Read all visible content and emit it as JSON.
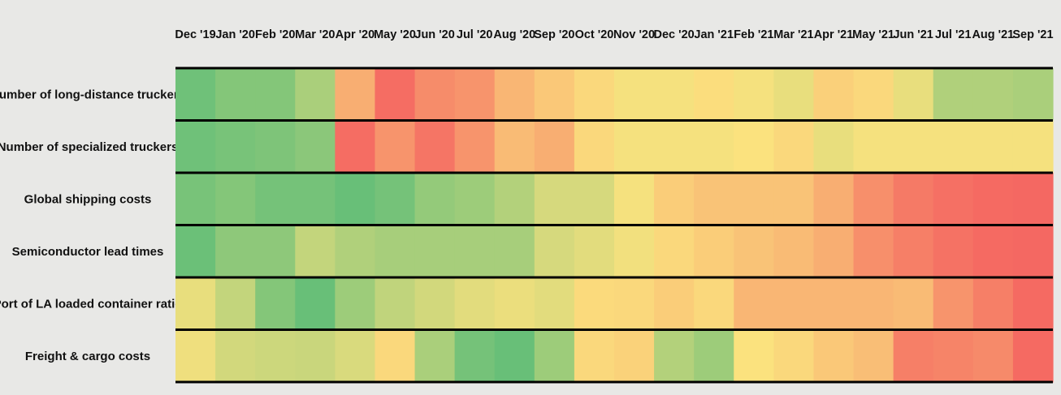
{
  "chart_data": {
    "type": "heatmap",
    "title": "",
    "xlabel": "",
    "ylabel": "",
    "legend": "none",
    "grid": false,
    "color_scale": {
      "low": "#f46060",
      "mid": "#fbe27e",
      "high": "#5fbd78",
      "range": [
        0,
        1
      ]
    },
    "columns": [
      "Dec '19",
      "Jan '20",
      "Feb '20",
      "Mar '20",
      "Apr '20",
      "May '20",
      "Jun '20",
      "Jul '20",
      "Aug '20",
      "Sep '20",
      "Oct '20",
      "Nov '20",
      "Dec '20",
      "Jan '21",
      "Feb '21",
      "Mar '21",
      "Apr '21",
      "May '21",
      "Jun '21",
      "Jul '21",
      "Aug '21",
      "Sep '21"
    ],
    "rows": [
      {
        "name": "Number of long-distance truckers",
        "values": [
          0.95,
          0.88,
          0.88,
          0.76,
          0.3,
          0.05,
          0.17,
          0.2,
          0.33,
          0.4,
          0.46,
          0.52,
          0.52,
          0.48,
          0.52,
          0.56,
          0.43,
          0.46,
          0.56,
          0.74,
          0.74,
          0.76
        ]
      },
      {
        "name": "Number of specialized truckers",
        "values": [
          0.95,
          0.92,
          0.9,
          0.86,
          0.05,
          0.2,
          0.08,
          0.2,
          0.35,
          0.3,
          0.46,
          0.52,
          0.52,
          0.52,
          0.5,
          0.46,
          0.56,
          0.52,
          0.52,
          0.52,
          0.52,
          0.52
        ]
      },
      {
        "name": "Global shipping costs",
        "values": [
          0.92,
          0.88,
          0.93,
          0.93,
          0.97,
          0.93,
          0.83,
          0.8,
          0.73,
          0.62,
          0.62,
          0.52,
          0.42,
          0.38,
          0.38,
          0.38,
          0.3,
          0.18,
          0.1,
          0.06,
          0.04,
          0.03
        ]
      },
      {
        "name": "Semiconductor lead times",
        "values": [
          0.96,
          0.85,
          0.85,
          0.68,
          0.74,
          0.77,
          0.77,
          0.77,
          0.77,
          0.62,
          0.58,
          0.53,
          0.46,
          0.42,
          0.38,
          0.35,
          0.3,
          0.18,
          0.12,
          0.07,
          0.04,
          0.03
        ]
      },
      {
        "name": "Port of LA loaded container ratio",
        "values": [
          0.56,
          0.68,
          0.88,
          0.97,
          0.8,
          0.69,
          0.63,
          0.58,
          0.55,
          0.58,
          0.47,
          0.46,
          0.42,
          0.46,
          0.33,
          0.33,
          0.33,
          0.33,
          0.35,
          0.2,
          0.12,
          0.04
        ]
      },
      {
        "name": "Freight & cargo costs",
        "values": [
          0.54,
          0.63,
          0.65,
          0.66,
          0.61,
          0.46,
          0.76,
          0.93,
          0.97,
          0.8,
          0.46,
          0.44,
          0.73,
          0.8,
          0.5,
          0.46,
          0.4,
          0.36,
          0.12,
          0.14,
          0.16,
          0.04
        ]
      }
    ]
  }
}
